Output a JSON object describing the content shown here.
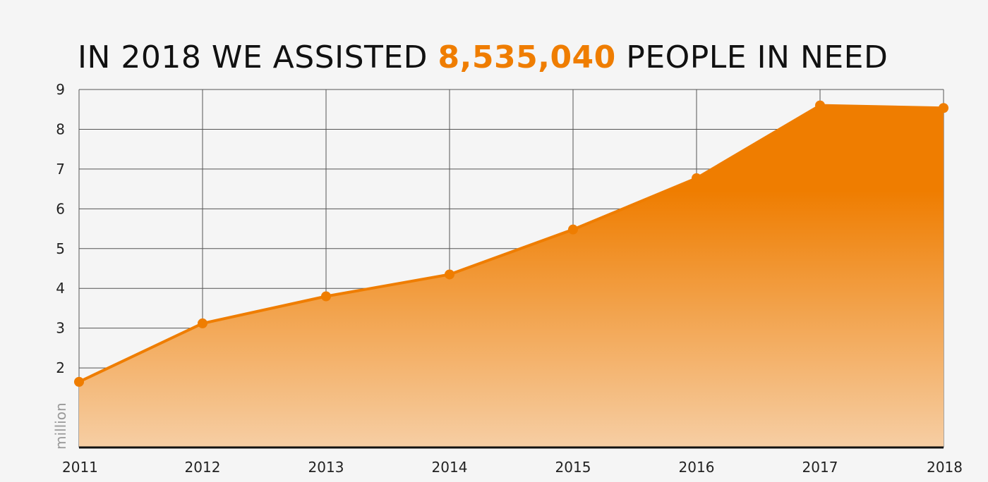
{
  "title": {
    "prefix": "IN 2018 WE ASSISTED ",
    "highlight": "8,535,040",
    "suffix": " PEOPLE IN NEED"
  },
  "colors": {
    "accent": "#ef7d00",
    "fill_top": "#ef7d00",
    "fill_bottom": "#f6cea4",
    "grid": "#555555",
    "background": "#f5f5f5"
  },
  "chart_data": {
    "type": "area",
    "title": "IN 2018 WE ASSISTED 8,535,040 PEOPLE IN NEED",
    "ylabel": "million",
    "xlabel": "",
    "x": [
      "2011",
      "2012",
      "2013",
      "2014",
      "2015",
      "2016",
      "2017",
      "2018"
    ],
    "series": [
      {
        "values": [
          1.65,
          3.12,
          3.8,
          4.35,
          5.48,
          6.77,
          8.6,
          8.535
        ]
      }
    ],
    "ylim": [
      0,
      9
    ],
    "yticks": [
      2,
      3,
      4,
      5,
      6,
      7,
      8,
      9
    ],
    "grid": true,
    "legend": "none"
  }
}
